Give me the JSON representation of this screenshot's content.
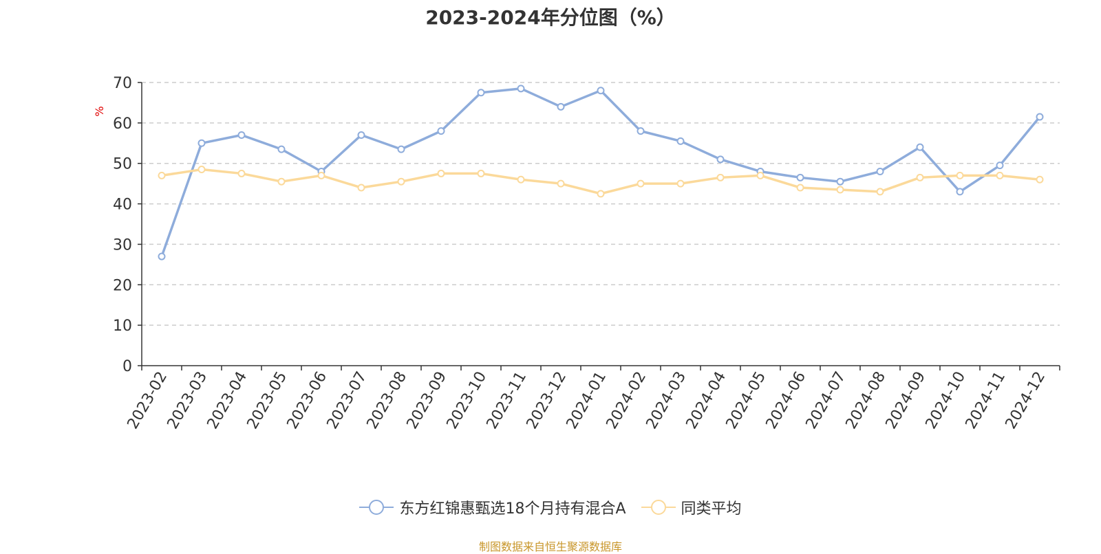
{
  "chart_data": {
    "type": "line",
    "title": "2023-2024年分位图（%）",
    "ylabel": "%",
    "ylim": [
      0,
      70
    ],
    "yticks": [
      0,
      10,
      20,
      30,
      40,
      50,
      60,
      70
    ],
    "grid": "horizontal-dashed",
    "legend_position": "bottom",
    "categories": [
      "2023-02",
      "2023-03",
      "2023-04",
      "2023-05",
      "2023-06",
      "2023-07",
      "2023-08",
      "2023-09",
      "2023-10",
      "2023-11",
      "2023-12",
      "2024-01",
      "2024-02",
      "2024-03",
      "2024-04",
      "2024-05",
      "2024-06",
      "2024-07",
      "2024-08",
      "2024-09",
      "2024-10",
      "2024-11",
      "2024-12"
    ],
    "series": [
      {
        "name": "东方红锦惠甄选18个月持有混合A",
        "color": "#8eacdb",
        "values": [
          27,
          55,
          57,
          53.5,
          48,
          57,
          53.5,
          58,
          67.5,
          68.5,
          64,
          68,
          58,
          55.5,
          51,
          48,
          46.5,
          45.5,
          48,
          54,
          43,
          49.5,
          61.5
        ]
      },
      {
        "name": "同类平均",
        "color": "#fbd99a",
        "values": [
          47,
          48.5,
          47.5,
          45.5,
          47,
          44,
          45.5,
          47.5,
          47.5,
          46,
          45,
          42.5,
          45,
          45,
          46.5,
          47,
          44,
          43.5,
          43,
          46.5,
          47,
          47,
          46
        ]
      }
    ]
  },
  "source_note": "制图数据来自恒生聚源数据库",
  "colors": {
    "axis": "#333333",
    "grid": "#cccccc",
    "ylabel": "#e00000",
    "source": "#c8962a"
  }
}
